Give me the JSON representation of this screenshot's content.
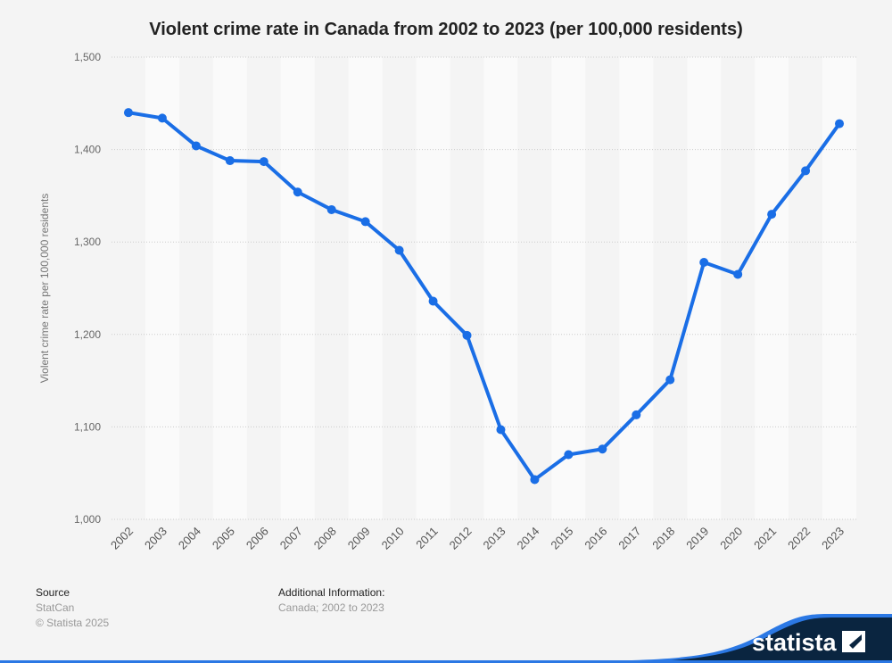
{
  "chart_data": {
    "type": "line",
    "title": "Violent crime rate in Canada from 2002 to 2023 (per 100,000 residents)",
    "xlabel": "",
    "ylabel": "Violent crime rate per 100,000 residents",
    "ylim": [
      1000,
      1500
    ],
    "yticks": [
      "1,000",
      "1,100",
      "1,200",
      "1,300",
      "1,400",
      "1,500"
    ],
    "grid": true,
    "categories": [
      "2002",
      "2003",
      "2004",
      "2005",
      "2006",
      "2007",
      "2008",
      "2009",
      "2010",
      "2011",
      "2012",
      "2013",
      "2014",
      "2015",
      "2016",
      "2017",
      "2018",
      "2019",
      "2020",
      "2021",
      "2022",
      "2023"
    ],
    "values": [
      1440,
      1434,
      1404,
      1388,
      1387,
      1354,
      1335,
      1322,
      1291,
      1236,
      1199,
      1097,
      1043,
      1070,
      1076,
      1113,
      1151,
      1278,
      1265,
      1330,
      1377,
      1428
    ],
    "color": "#1a6ee6"
  },
  "footer": {
    "source_label": "Source",
    "source": "StatCan",
    "copyright": "© Statista 2025",
    "info_label": "Additional Information:",
    "info": "Canada; 2002 to 2023"
  },
  "logo": {
    "text": "statista",
    "colors": {
      "dark": "#0a2540",
      "blue": "#2b78e4"
    }
  }
}
